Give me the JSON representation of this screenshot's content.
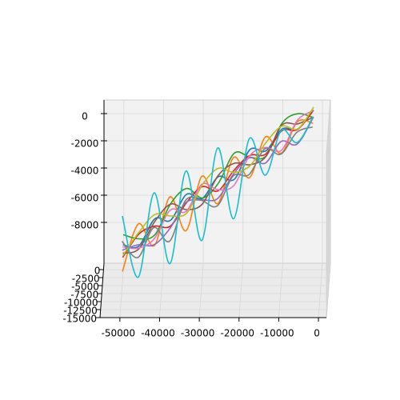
{
  "chart_data": {
    "type": "line3d",
    "x": [
      -50000,
      -46000,
      -42000,
      -38000,
      -34000,
      -30000,
      -26000,
      -22000,
      -18000,
      -14000,
      -10000,
      -6000,
      -2000
    ],
    "xlim": [
      -55000,
      2000
    ],
    "ylim": [
      -15000,
      2000
    ],
    "zlim": [
      -11000,
      1000
    ],
    "xticks": [
      -50000,
      -40000,
      -30000,
      -20000,
      -10000,
      0
    ],
    "yticks": [
      0,
      -2500,
      -5000,
      -7500,
      -10000,
      -12500,
      -15000
    ],
    "zticks": [
      0,
      -2000,
      -4000,
      -6000,
      -8000
    ],
    "grid": true,
    "series": [
      {
        "color": "#1f77b4",
        "y": [
          -2000,
          -2000,
          -2000,
          -2000,
          -2000,
          -2000,
          -2000,
          -2000,
          -2000,
          -2000,
          -2000,
          -2000,
          -2000
        ],
        "z": [
          -8700,
          -8800,
          -6800,
          -6900,
          -5000,
          -5300,
          -3700,
          -3900,
          -1700,
          -1800,
          -200,
          -200,
          1200
        ]
      },
      {
        "color": "#ff7f0e",
        "y": [
          -4000,
          -4000,
          -4000,
          -4000,
          -4000,
          -4000,
          -4000,
          -4000,
          -4000,
          -4000,
          -4000,
          -4000,
          -4000
        ],
        "z": [
          -10200,
          -6700,
          -8300,
          -4700,
          -7200,
          -3200,
          -5200,
          -1800,
          -3300,
          -300,
          -1500,
          800,
          700
        ]
      },
      {
        "color": "#2ca02c",
        "y": [
          -1000,
          -1000,
          -1000,
          -1000,
          -1000,
          -1000,
          -1000,
          -1000,
          -1000,
          -1000,
          -1000,
          -1000,
          -1000
        ],
        "z": [
          -8200,
          -8500,
          -8200,
          -5900,
          -4800,
          -5500,
          -4400,
          -2200,
          -2500,
          -2400,
          0,
          700,
          400
        ]
      },
      {
        "color": "#d62728",
        "y": [
          -3000,
          -3000,
          -3000,
          -3000,
          -3000,
          -3000,
          -3000,
          -3000,
          -3000,
          -3000,
          -3000,
          -3000,
          -3000
        ],
        "z": [
          -9400,
          -7700,
          -7100,
          -7100,
          -5400,
          -4200,
          -4500,
          -3000,
          -1900,
          -1800,
          -100,
          0,
          1400
        ]
      },
      {
        "color": "#9467bd",
        "y": [
          -5000,
          -5000,
          -5000,
          -5000,
          -5000,
          -5000,
          -5000,
          -5000,
          -5000,
          -5000,
          -5000,
          -5000,
          -5000
        ],
        "z": [
          -8400,
          -8000,
          -8000,
          -6800,
          -4900,
          -4700,
          -4600,
          -2800,
          -1600,
          -2000,
          -400,
          -600,
          1300
        ]
      },
      {
        "color": "#8c564b",
        "y": [
          -2500,
          -2500,
          -2500,
          -2500,
          -2500,
          -2500,
          -2500,
          -2500,
          -2500,
          -2500,
          -2500,
          -2500,
          -2500
        ],
        "z": [
          -9200,
          -8900,
          -6900,
          -5600,
          -6000,
          -5600,
          -3500,
          -2600,
          -2700,
          -2100,
          200,
          300,
          800
        ]
      },
      {
        "color": "#e377c2",
        "y": [
          -3500,
          -3500,
          -3500,
          -3500,
          -3500,
          -3500,
          -3500,
          -3500,
          -3500,
          -3500,
          -3500,
          -3500,
          -3500
        ],
        "z": [
          -8500,
          -8600,
          -7900,
          -5800,
          -5900,
          -3900,
          -4300,
          -4000,
          -1800,
          -1200,
          -1400,
          800,
          1500
        ]
      },
      {
        "color": "#7f7f7f",
        "y": [
          -6000,
          -6000,
          -6000,
          -6000,
          -6000,
          -6000,
          -6000,
          -6000,
          -6000,
          -6000,
          -6000,
          -6000,
          -6000
        ],
        "z": [
          -7500,
          -8700,
          -6500,
          -7500,
          -4500,
          -4500,
          -4900,
          -2700,
          -2600,
          -700,
          -1100,
          500,
          900
        ]
      },
      {
        "color": "#bcbd22",
        "y": [
          -1500,
          -1500,
          -1500,
          -1500,
          -1500,
          -1500,
          -1500,
          -1500,
          -1500,
          -1500,
          -1500,
          -1500,
          -1500
        ],
        "z": [
          -9600,
          -7900,
          -6600,
          -6700,
          -6500,
          -4400,
          -3200,
          -3500,
          -3000,
          -1300,
          -100,
          -300,
          1300
        ]
      },
      {
        "color": "#17becf",
        "y": [
          -4500,
          -4500,
          -4500,
          -4500,
          -4500,
          -4500,
          -4500,
          -4500,
          -4500,
          -4500,
          -4500,
          -4500,
          -4500
        ],
        "z": [
          -6000,
          -10500,
          -4300,
          -9500,
          -2700,
          -7800,
          -1000,
          -6200,
          -300,
          -3000,
          300,
          -600,
          1300
        ]
      }
    ]
  }
}
